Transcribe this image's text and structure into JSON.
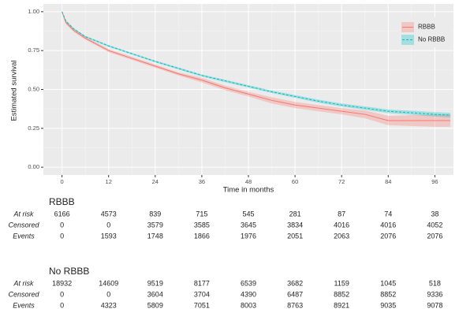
{
  "chart_data": {
    "type": "survival",
    "xlabel": "Time in months",
    "ylabel": "Estimated survival",
    "x": [
      0,
      1,
      3,
      6,
      9,
      12,
      18,
      24,
      30,
      36,
      42,
      48,
      54,
      60,
      66,
      72,
      78,
      84,
      90,
      96,
      100
    ],
    "xlim": [
      -4.8,
      100.8
    ],
    "xticks": [
      0,
      12,
      24,
      36,
      48,
      60,
      72,
      84,
      96
    ],
    "ylim": [
      -0.05,
      1.05
    ],
    "yticks": [
      {
        "value": 0,
        "label": "0.00"
      },
      {
        "value": 0.25,
        "label": "0.25"
      },
      {
        "value": 0.5,
        "label": "0.50"
      },
      {
        "value": 0.75,
        "label": "0.75"
      },
      {
        "value": 1,
        "label": "1.00"
      }
    ],
    "grid": true,
    "legend": "top-right",
    "series": [
      {
        "name": "RBBB",
        "color": "#F8766D",
        "dash": false,
        "values": [
          1,
          0.93,
          0.88,
          0.83,
          0.79,
          0.75,
          0.7,
          0.65,
          0.6,
          0.56,
          0.51,
          0.47,
          0.43,
          0.4,
          0.38,
          0.36,
          0.34,
          0.3,
          0.3,
          0.3,
          0.3
        ],
        "lower": [
          1,
          0.92,
          0.87,
          0.82,
          0.78,
          0.74,
          0.69,
          0.64,
          0.59,
          0.545,
          0.495,
          0.455,
          0.41,
          0.38,
          0.36,
          0.34,
          0.315,
          0.27,
          0.265,
          0.26,
          0.26
        ],
        "upper": [
          1,
          0.94,
          0.89,
          0.84,
          0.8,
          0.76,
          0.71,
          0.66,
          0.61,
          0.575,
          0.525,
          0.485,
          0.45,
          0.42,
          0.4,
          0.38,
          0.365,
          0.33,
          0.335,
          0.34,
          0.34
        ]
      },
      {
        "name": "No RBBB",
        "color": "#00BFC4",
        "dash": true,
        "values": [
          1,
          0.94,
          0.89,
          0.84,
          0.81,
          0.78,
          0.73,
          0.68,
          0.635,
          0.59,
          0.555,
          0.52,
          0.485,
          0.455,
          0.425,
          0.4,
          0.38,
          0.36,
          0.35,
          0.34,
          0.335
        ],
        "lower": [
          1,
          0.935,
          0.885,
          0.835,
          0.804,
          0.774,
          0.724,
          0.674,
          0.628,
          0.583,
          0.547,
          0.512,
          0.477,
          0.446,
          0.415,
          0.39,
          0.369,
          0.348,
          0.337,
          0.326,
          0.32
        ],
        "upper": [
          1,
          0.945,
          0.895,
          0.845,
          0.816,
          0.786,
          0.736,
          0.686,
          0.642,
          0.597,
          0.563,
          0.528,
          0.493,
          0.464,
          0.435,
          0.41,
          0.391,
          0.372,
          0.363,
          0.354,
          0.35
        ]
      }
    ],
    "risk_tables": [
      {
        "title": "RBBB",
        "rows": [
          {
            "label": "At risk",
            "values": [
              6166,
              4573,
              839,
              715,
              545,
              281,
              87,
              74,
              38
            ]
          },
          {
            "label": "Censored",
            "values": [
              0,
              0,
              3579,
              3585,
              3645,
              3834,
              4016,
              4016,
              4052
            ]
          },
          {
            "label": "Events",
            "values": [
              0,
              1593,
              1748,
              1866,
              1976,
              2051,
              2063,
              2076,
              2076
            ]
          }
        ]
      },
      {
        "title": "No RBBB",
        "rows": [
          {
            "label": "At risk",
            "values": [
              18932,
              14609,
              9519,
              8177,
              6539,
              3682,
              1159,
              1045,
              518
            ]
          },
          {
            "label": "Censored",
            "values": [
              0,
              0,
              3604,
              3704,
              4390,
              6487,
              8852,
              8852,
              9336
            ]
          },
          {
            "label": "Events",
            "values": [
              0,
              4323,
              5809,
              7051,
              8003,
              8763,
              8921,
              9035,
              9078
            ]
          }
        ]
      }
    ]
  }
}
